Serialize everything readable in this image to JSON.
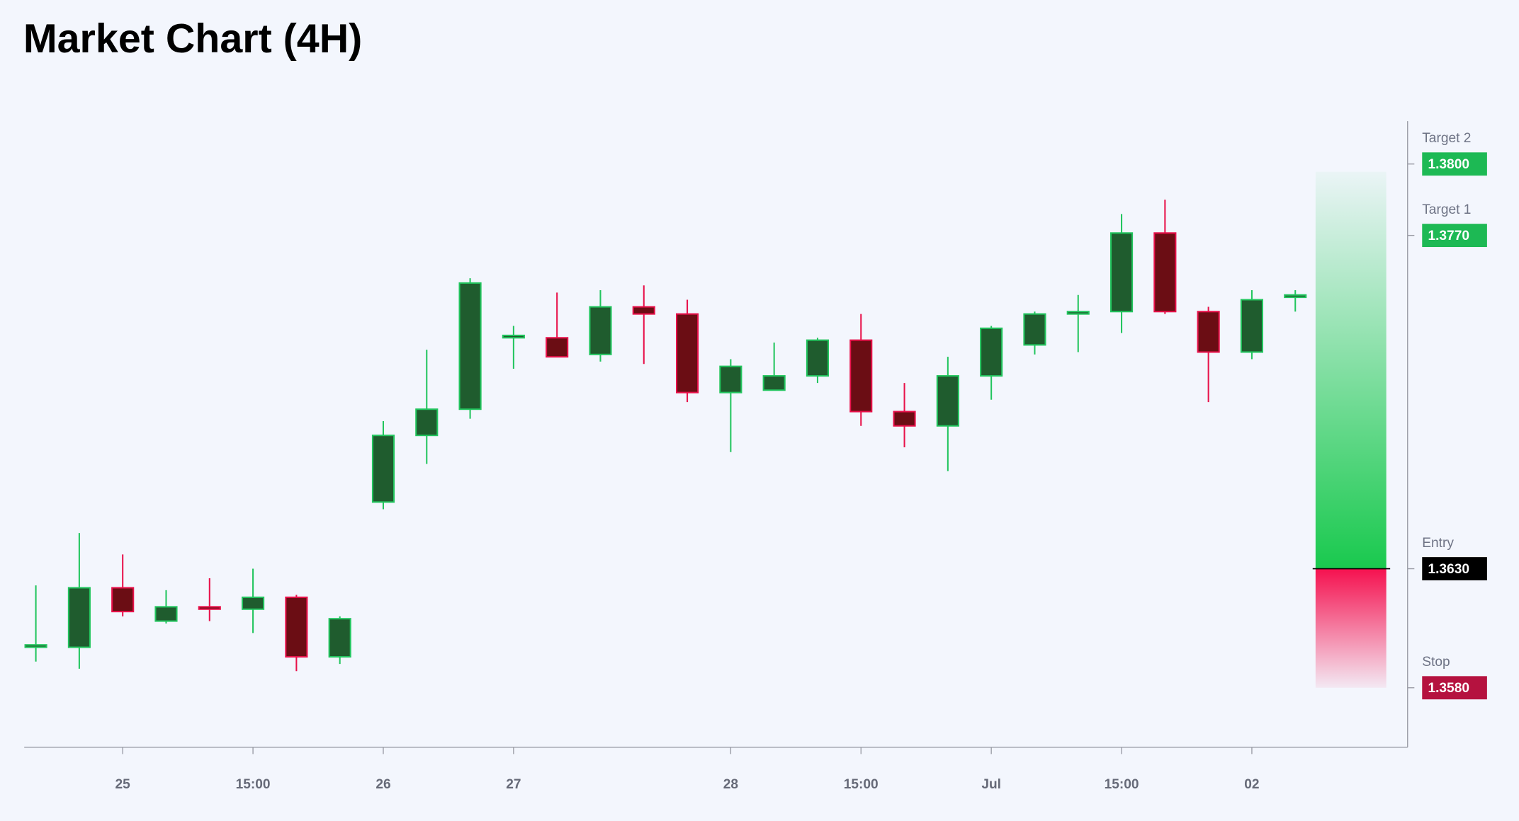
{
  "chart_data": {
    "type": "candlestick",
    "title": "Market Chart (4H)",
    "categories": [
      null,
      null,
      "25",
      null,
      null,
      "15:00",
      null,
      null,
      "26",
      null,
      null,
      "27",
      null,
      null,
      null,
      null,
      "28",
      null,
      null,
      "15:00",
      null,
      null,
      "Jul",
      null,
      null,
      "15:00",
      null,
      null,
      "02",
      null
    ],
    "open": [
      1.3597,
      1.3597,
      1.3622,
      1.3608,
      1.3614,
      1.3613,
      1.3618,
      1.3593,
      1.3658,
      1.3686,
      1.3697,
      1.3727,
      1.3727,
      1.372,
      1.374,
      1.3737,
      1.3704,
      1.3705,
      1.3711,
      1.3726,
      1.3696,
      1.369,
      1.3711,
      1.3724,
      1.3737,
      1.3738,
      1.3771,
      1.3738,
      1.3721,
      1.3744
    ],
    "high": [
      1.3623,
      1.3645,
      1.3636,
      1.3621,
      1.3626,
      1.363,
      1.3619,
      1.361,
      1.3692,
      1.3722,
      1.3752,
      1.3732,
      1.3746,
      1.3747,
      1.3749,
      1.3743,
      1.3718,
      1.3725,
      1.3727,
      1.3737,
      1.3708,
      1.3719,
      1.3732,
      1.3738,
      1.3745,
      1.3779,
      1.3785,
      1.374,
      1.3747,
      1.3747
    ],
    "low": [
      1.3591,
      1.3588,
      1.361,
      1.3607,
      1.3608,
      1.3603,
      1.3587,
      1.359,
      1.3655,
      1.3674,
      1.3693,
      1.3714,
      1.3719,
      1.3717,
      1.3716,
      1.37,
      1.3679,
      1.3705,
      1.3708,
      1.369,
      1.3681,
      1.3671,
      1.3701,
      1.372,
      1.3721,
      1.3729,
      1.3737,
      1.37,
      1.3718,
      1.3738
    ],
    "close": [
      1.3598,
      1.3622,
      1.3612,
      1.3614,
      1.3613,
      1.3618,
      1.3593,
      1.3609,
      1.3686,
      1.3697,
      1.375,
      1.3728,
      1.3719,
      1.374,
      1.3737,
      1.3704,
      1.3715,
      1.3711,
      1.3726,
      1.3696,
      1.369,
      1.3711,
      1.3731,
      1.3737,
      1.3738,
      1.3771,
      1.3738,
      1.3721,
      1.3743,
      1.3745
    ],
    "up_color": "#1f5c2e",
    "up_border": "#22c55e",
    "down_color": "#6b0d14",
    "down_border": "#e8114a",
    "ylim": [
      1.3555,
      1.3818
    ],
    "levels": [
      {
        "name": "Target 2",
        "value": 1.38,
        "label": "1.3800",
        "color": "#1db954"
      },
      {
        "name": "Target 1",
        "value": 1.377,
        "label": "1.3770",
        "color": "#1db954"
      },
      {
        "name": "Entry",
        "value": 1.363,
        "label": "1.3630",
        "color": "#000000"
      },
      {
        "name": "Stop",
        "value": 1.358,
        "label": "1.3580",
        "color": "#b5123f"
      }
    ]
  }
}
